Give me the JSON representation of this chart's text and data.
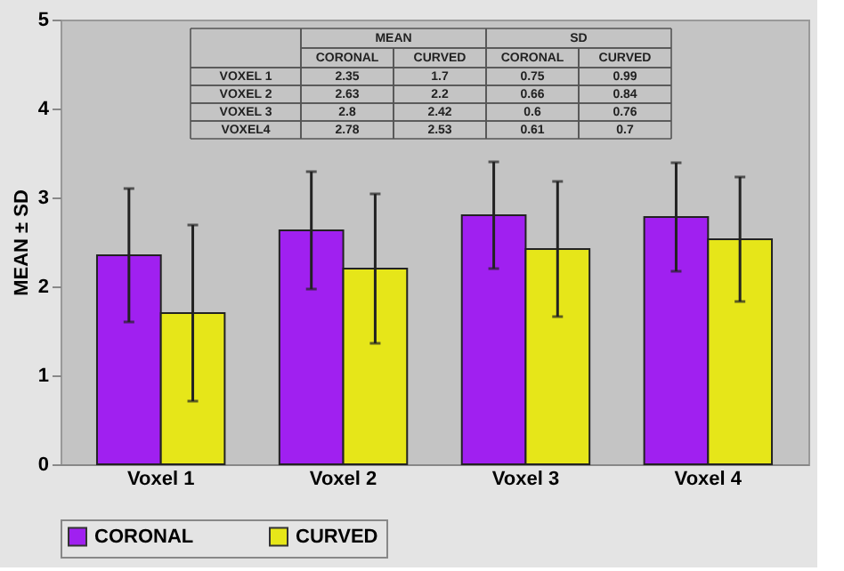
{
  "chart_data": {
    "type": "bar",
    "ylabel": "MEAN ± SD",
    "categories": [
      "Voxel 1",
      "Voxel 2",
      "Voxel 3",
      "Voxel 4"
    ],
    "series": [
      {
        "name": "CORONAL",
        "color": "#a020f0",
        "values": [
          2.35,
          2.63,
          2.8,
          2.78
        ],
        "errors": [
          0.75,
          0.66,
          0.6,
          0.61
        ]
      },
      {
        "name": "CURVED",
        "color": "#e6e619",
        "values": [
          1.7,
          2.2,
          2.42,
          2.53
        ],
        "errors": [
          0.99,
          0.84,
          0.76,
          0.7
        ]
      }
    ],
    "ylim": [
      0,
      5
    ],
    "yticks": [
      0,
      1,
      2,
      3,
      4,
      5
    ],
    "grid": false,
    "legend": "bottom",
    "annotations": [
      "MEAN",
      "SD",
      "CORONAL",
      "CURVED",
      "CORONAL",
      "CURVED",
      "VOXEL 1",
      "2.35",
      "1.7",
      "0.75",
      "0.99",
      "VOXEL 2",
      "2.63",
      "2.2",
      "0.66",
      "0.84",
      "VOXEL 3",
      "2.8",
      "2.42",
      "0.6",
      "0.76",
      "VOXEL4",
      "2.78",
      "2.53",
      "0.61",
      "0.7"
    ]
  }
}
